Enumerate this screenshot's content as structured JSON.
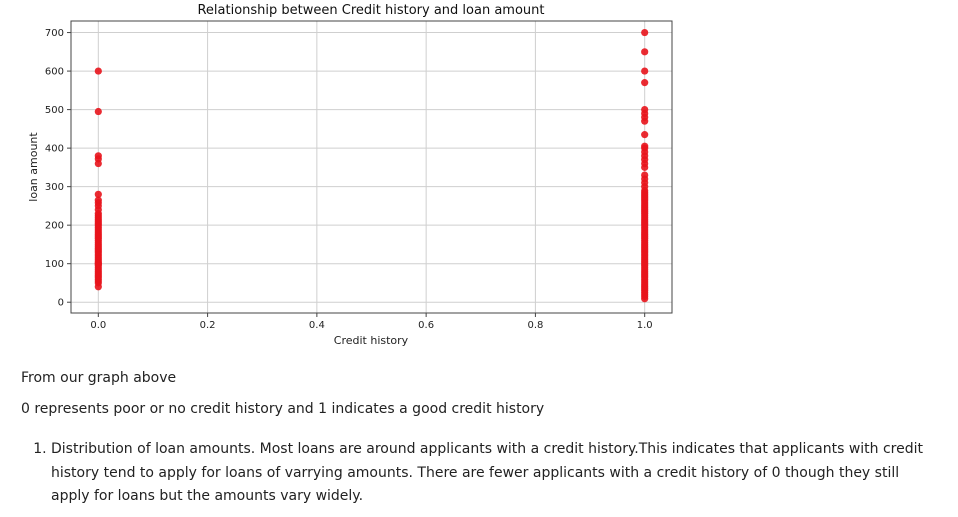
{
  "chart_data": {
    "type": "scatter",
    "title": "Relationship between Credit history and loan amount",
    "xlabel": "Credit history",
    "ylabel": "loan amount",
    "xlim": [
      -0.05,
      1.05
    ],
    "ylim": [
      -28,
      730
    ],
    "x_ticks": [
      0.0,
      0.2,
      0.4,
      0.6,
      0.8,
      1.0
    ],
    "x_tick_labels": [
      "0.0",
      "0.2",
      "0.4",
      "0.6",
      "0.8",
      "1.0"
    ],
    "y_ticks": [
      0,
      100,
      200,
      300,
      400,
      500,
      600,
      700
    ],
    "y_tick_labels": [
      "0",
      "100",
      "200",
      "300",
      "400",
      "500",
      "600",
      "700"
    ],
    "grid": true,
    "marker_color": "#e8141c",
    "series": [
      {
        "x": [
          0,
          0,
          0,
          0,
          0,
          0,
          0,
          0,
          0,
          0,
          0,
          0,
          0,
          0,
          0,
          0,
          0,
          0,
          0,
          0,
          0,
          0,
          0,
          0,
          0,
          0,
          0,
          0,
          0,
          0,
          0,
          0,
          0,
          0,
          0,
          0,
          0,
          0,
          0,
          0,
          0,
          0,
          0,
          0,
          0,
          0,
          0,
          0,
          0
        ],
        "y": [
          40,
          50,
          55,
          60,
          65,
          70,
          75,
          80,
          85,
          90,
          95,
          100,
          105,
          110,
          115,
          120,
          125,
          130,
          135,
          140,
          145,
          150,
          155,
          160,
          165,
          170,
          175,
          180,
          185,
          190,
          195,
          200,
          205,
          210,
          215,
          220,
          225,
          230,
          240,
          250,
          258,
          265,
          280,
          360,
          372,
          380,
          495,
          600,
          100
        ]
      },
      {
        "x": [
          1,
          1,
          1,
          1,
          1,
          1,
          1,
          1,
          1,
          1,
          1,
          1,
          1,
          1,
          1,
          1,
          1,
          1,
          1,
          1,
          1,
          1,
          1,
          1,
          1,
          1,
          1,
          1,
          1,
          1,
          1,
          1,
          1,
          1,
          1,
          1,
          1,
          1,
          1,
          1,
          1,
          1,
          1,
          1,
          1,
          1,
          1,
          1,
          1,
          1,
          1,
          1,
          1,
          1,
          1,
          1,
          1,
          1,
          1,
          1,
          1,
          1,
          1,
          1,
          1,
          1,
          1,
          1,
          1,
          1,
          1,
          1,
          1,
          1,
          1,
          1,
          1
        ],
        "y": [
          9,
          15,
          20,
          25,
          30,
          35,
          40,
          45,
          50,
          55,
          60,
          65,
          70,
          75,
          80,
          85,
          90,
          95,
          100,
          105,
          110,
          115,
          120,
          125,
          130,
          135,
          140,
          145,
          150,
          155,
          160,
          165,
          170,
          175,
          180,
          185,
          190,
          195,
          200,
          205,
          210,
          215,
          220,
          225,
          230,
          235,
          240,
          245,
          250,
          255,
          260,
          265,
          270,
          275,
          280,
          285,
          290,
          300,
          310,
          320,
          330,
          350,
          360,
          370,
          380,
          390,
          400,
          405,
          435,
          470,
          480,
          490,
          500,
          570,
          600,
          650,
          700
        ]
      }
    ]
  },
  "text": {
    "line1": "From our graph above",
    "line2": "0 represents poor or no credit history and 1 indicates a good credit history",
    "list_item_1": "Distribution of loan amounts. Most loans are around applicants with a credit history.This indicates that applicants with credit history tend to apply for loans of varrying amounts. There are fewer applicants with a credit history of 0 though they still apply for loans but the amounts vary widely."
  }
}
